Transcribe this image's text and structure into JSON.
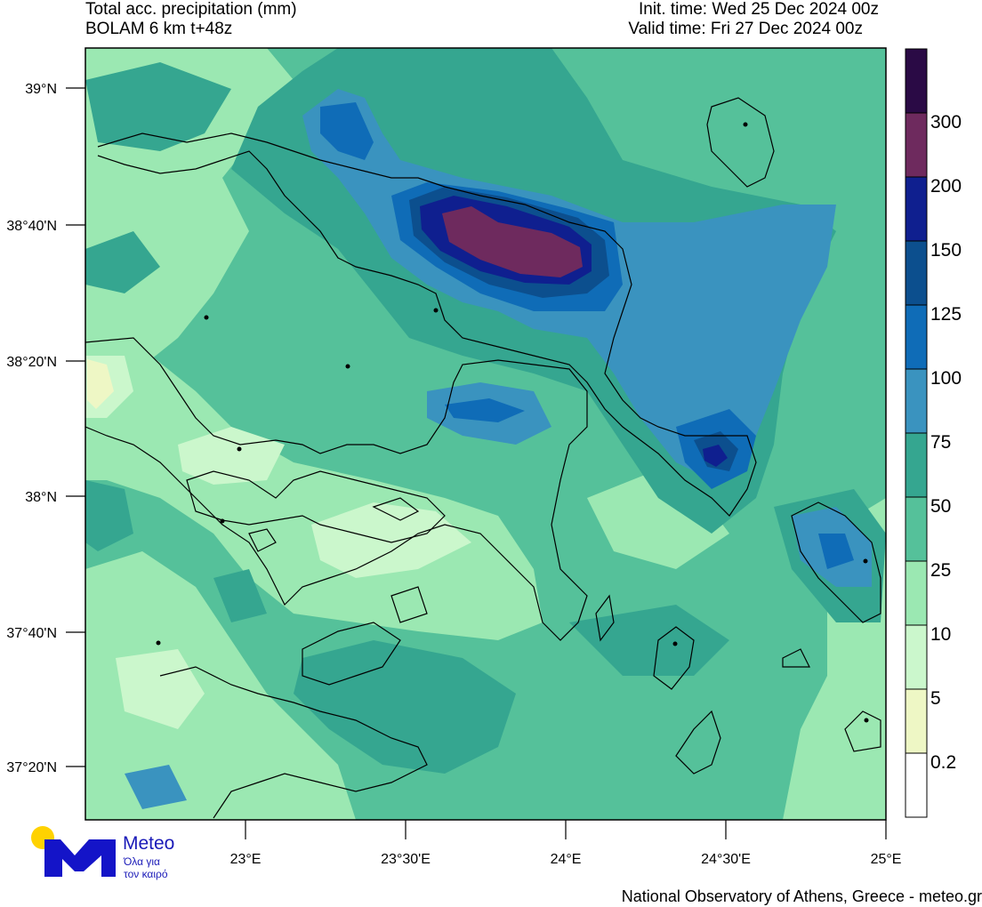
{
  "header": {
    "title": "Total acc. precipitation (mm)",
    "subtitle": "BOLAM 6 km t+48z",
    "init_time": "Init. time: Wed 25 Dec 2024 00z",
    "valid_time": "Valid time: Fri 27 Dec 2024 00z"
  },
  "axes": {
    "lat_labels": [
      "39°N",
      "38°40'N",
      "38°20'N",
      "38°N",
      "37°40'N",
      "37°20'N"
    ],
    "lon_labels": [
      "23°E",
      "23°30'E",
      "24°E",
      "24°30'E",
      "25°E"
    ]
  },
  "colorbar": {
    "levels": [
      "0.2",
      "5",
      "10",
      "25",
      "50",
      "75",
      "100",
      "125",
      "150",
      "200",
      "300"
    ],
    "colors": [
      "#ffffff",
      "#eef7c5",
      "#cbf7cc",
      "#9be8b2",
      "#55c19a",
      "#35a690",
      "#3a93bf",
      "#0f6cb7",
      "#0c4f8e",
      "#0f1f8f",
      "#6e2a5e",
      "#2a0a45"
    ]
  },
  "logo": {
    "word": "Meteo",
    "tagline_1": "Όλα για",
    "tagline_2": "τον καιρό",
    "colors": {
      "sun": "#ffd200",
      "mark": "#1414c8"
    }
  },
  "footer": "National Observatory of Athens, Greece - meteo.gr"
}
